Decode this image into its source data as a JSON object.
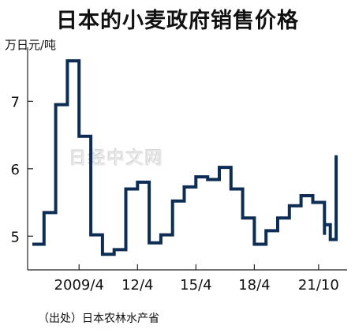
{
  "chart_data": {
    "type": "line",
    "step": true,
    "title": "日本的小麦政府销售价格",
    "unit_label": "万日元/吨",
    "source": "（出处）日本农林水产省",
    "watermark": "日经中文网",
    "ylim": [
      4.5,
      7.8
    ],
    "yticks": [
      5,
      6,
      7
    ],
    "xlim": [
      0,
      13.2
    ],
    "xticks": [
      {
        "x": 2,
        "label": "2009/4"
      },
      {
        "x": 4.5,
        "label": "12/4"
      },
      {
        "x": 7,
        "label": "15/4"
      },
      {
        "x": 9.5,
        "label": "18/4"
      },
      {
        "x": 12.25,
        "label": "21/10"
      }
    ],
    "x": [
      0,
      0.5,
      1,
      1.5,
      2,
      2.5,
      3,
      3.5,
      4,
      4.5,
      5,
      5.5,
      6,
      6.5,
      7,
      7.5,
      8,
      8.5,
      9,
      9.5,
      10,
      10.5,
      11,
      11.5,
      12,
      12.5
    ],
    "values": [
      4.88,
      5.35,
      6.95,
      7.6,
      6.48,
      5.02,
      4.73,
      4.8,
      5.7,
      5.8,
      4.9,
      5.02,
      5.52,
      5.73,
      5.88,
      5.84,
      6.02,
      5.7,
      5.27,
      4.88,
      5.08,
      5.27,
      5.45,
      5.6,
      5.5,
      5.02
    ],
    "tail": [
      {
        "x": 12.5,
        "y": 5.17
      },
      {
        "x": 12.75,
        "y": 4.95
      },
      {
        "x": 13.0,
        "y": 5.2
      },
      {
        "x": 13.0,
        "y": 6.2
      }
    ],
    "line_color": "#0d2d55"
  }
}
